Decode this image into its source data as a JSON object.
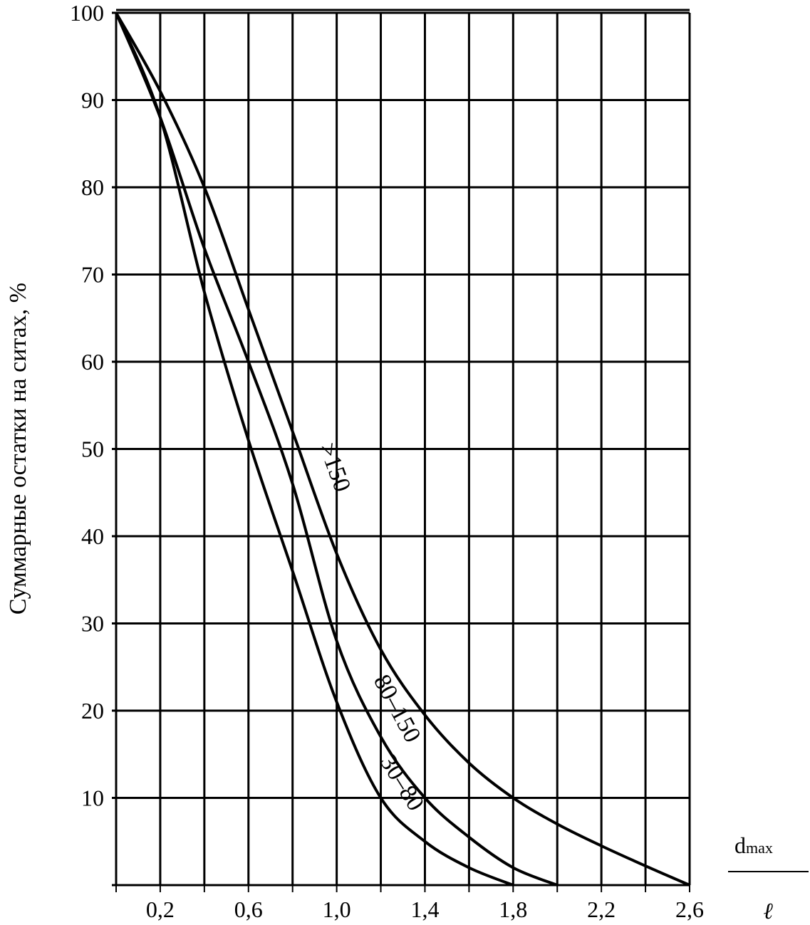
{
  "chart_data": {
    "type": "line",
    "title": "",
    "xlabel_num": "d",
    "xlabel_sub": "max",
    "xlabel_den": "ℓ",
    "ylabel": "Суммарные остатки на ситах, %",
    "xlim": [
      0,
      2.6
    ],
    "ylim": [
      0,
      100
    ],
    "grid": true,
    "x_grid_step": 0.2,
    "y_grid_step": 10,
    "x_ticks": [
      {
        "v": 0.2,
        "label": "0,2"
      },
      {
        "v": 0.6,
        "label": "0,6"
      },
      {
        "v": 1.0,
        "label": "1,0"
      },
      {
        "v": 1.4,
        "label": "1,4"
      },
      {
        "v": 1.8,
        "label": "1,8"
      },
      {
        "v": 2.2,
        "label": "2,2"
      },
      {
        "v": 2.6,
        "label": "2,6"
      }
    ],
    "y_ticks": [
      {
        "v": 10,
        "label": "10"
      },
      {
        "v": 20,
        "label": "20"
      },
      {
        "v": 30,
        "label": "30"
      },
      {
        "v": 40,
        "label": "40"
      },
      {
        "v": 50,
        "label": "50"
      },
      {
        "v": 60,
        "label": "60"
      },
      {
        "v": 70,
        "label": "70"
      },
      {
        "v": 80,
        "label": "80"
      },
      {
        "v": 90,
        "label": "90"
      },
      {
        "v": 100,
        "label": "100"
      }
    ],
    "series": [
      {
        "name": ">150",
        "label": "˃150",
        "x": [
          0,
          0.2,
          0.4,
          0.6,
          0.8,
          1.0,
          1.2,
          1.4,
          1.6,
          1.8,
          2.0,
          2.2,
          2.4,
          2.6
        ],
        "y": [
          100,
          91,
          80,
          66,
          52,
          38,
          27,
          19.5,
          14,
          10,
          7,
          4.5,
          2.2,
          0
        ]
      },
      {
        "name": "80–150",
        "label": "80–150",
        "x": [
          0,
          0.2,
          0.4,
          0.6,
          0.8,
          1.0,
          1.2,
          1.4,
          1.6,
          1.8,
          2.0
        ],
        "y": [
          100,
          88,
          73,
          60,
          46,
          28,
          17,
          10,
          5.5,
          2,
          0
        ]
      },
      {
        "name": "30–80",
        "label": "30–80",
        "x": [
          0,
          0.2,
          0.4,
          0.6,
          0.8,
          1.0,
          1.2,
          1.4,
          1.6,
          1.8
        ],
        "y": [
          100,
          88,
          68,
          51,
          36,
          21,
          10,
          5,
          2,
          0
        ]
      }
    ]
  }
}
